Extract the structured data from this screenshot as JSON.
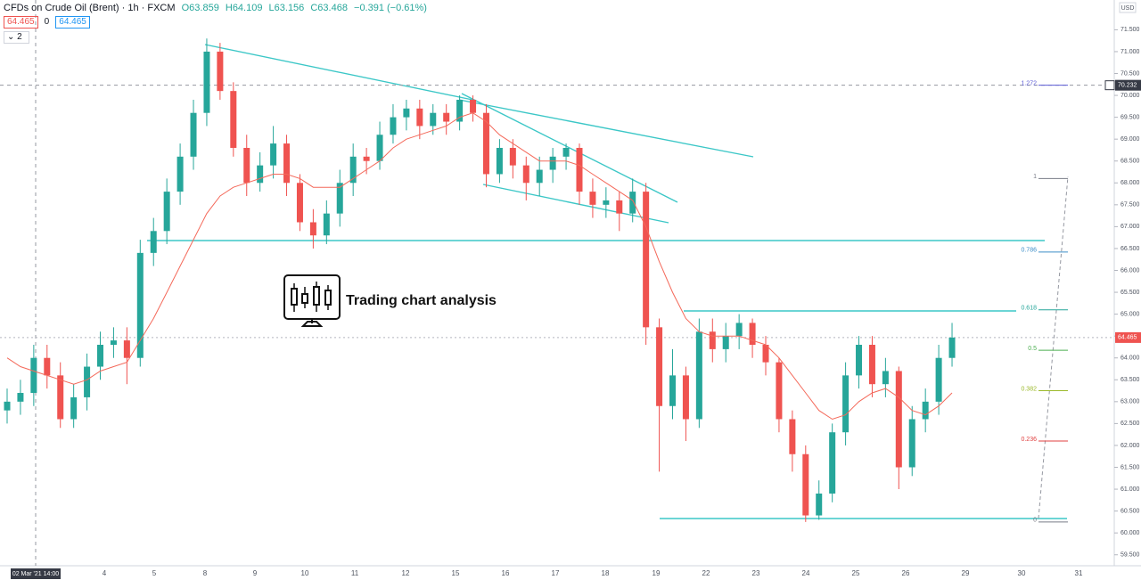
{
  "header": {
    "symbol": "CFDs on Crude Oil (Brent) · 1h · FXCM",
    "ohlc": [
      "O63.859",
      "H64.109",
      "L63.156",
      "C63.468"
    ],
    "change": "−0.391 (−0.61%)",
    "bid": "64.465",
    "spread": "0",
    "ask": "64.465",
    "indicator_count": "2",
    "currency": "USD",
    "watermark": "Trading chart analysis"
  },
  "chart_data": {
    "type": "candlestick",
    "open": [
      62.8,
      63.0,
      63.2,
      64.0,
      63.6,
      62.6,
      63.1,
      63.8,
      64.3,
      64.4,
      64.0,
      66.4,
      66.9,
      67.8,
      68.6,
      69.6,
      71.0,
      70.1,
      68.8,
      68.0,
      68.4,
      68.9,
      68.0,
      67.1,
      66.8,
      67.3,
      68.0,
      68.6,
      68.5,
      69.1,
      69.5,
      69.7,
      69.3,
      69.6,
      69.4,
      69.9,
      69.6,
      68.2,
      68.8,
      68.4,
      68.0,
      68.3,
      68.6,
      68.8,
      67.8,
      67.5,
      67.6,
      67.3,
      67.8,
      64.7,
      62.9,
      63.6,
      62.6,
      64.6,
      64.2,
      64.5,
      64.8,
      64.3,
      63.9,
      62.6,
      61.8,
      60.4,
      60.9,
      62.3,
      63.6,
      64.3,
      63.4,
      63.7,
      61.5,
      62.6,
      63.0,
      64.0
    ],
    "high": [
      63.3,
      63.5,
      64.3,
      64.3,
      63.9,
      63.4,
      64.1,
      64.6,
      64.7,
      64.7,
      66.7,
      67.2,
      68.1,
      68.9,
      69.9,
      71.3,
      71.2,
      70.3,
      69.1,
      68.7,
      69.3,
      69.1,
      68.2,
      67.4,
      67.6,
      68.3,
      68.9,
      68.8,
      69.4,
      69.8,
      69.9,
      69.9,
      69.8,
      69.8,
      70.0,
      70.0,
      69.8,
      69.0,
      69.0,
      68.6,
      68.6,
      68.8,
      68.9,
      68.9,
      68.1,
      67.9,
      67.8,
      68.1,
      68.0,
      64.9,
      64.2,
      63.8,
      64.9,
      64.9,
      64.8,
      65.0,
      64.9,
      64.5,
      64.0,
      62.8,
      62.0,
      61.2,
      62.5,
      63.9,
      64.5,
      64.5,
      64.0,
      63.8,
      62.9,
      63.3,
      64.3,
      64.8
    ],
    "low": [
      62.5,
      62.7,
      62.9,
      63.3,
      62.4,
      62.4,
      62.8,
      63.5,
      64.0,
      63.4,
      63.8,
      66.1,
      66.6,
      67.5,
      68.3,
      69.3,
      69.9,
      68.6,
      67.7,
      67.8,
      68.1,
      67.7,
      66.9,
      66.5,
      66.6,
      67.0,
      67.7,
      68.2,
      68.3,
      68.9,
      69.2,
      69.0,
      69.1,
      69.1,
      69.2,
      69.4,
      67.9,
      68.0,
      68.1,
      67.6,
      67.7,
      68.0,
      68.3,
      67.5,
      67.2,
      67.2,
      66.9,
      67.1,
      64.3,
      61.4,
      62.6,
      62.1,
      62.4,
      63.9,
      63.9,
      64.2,
      64.0,
      63.6,
      62.3,
      61.4,
      60.25,
      60.3,
      60.7,
      62.0,
      63.3,
      63.1,
      63.1,
      61.0,
      61.3,
      62.3,
      62.7,
      63.8
    ],
    "close": [
      63.0,
      63.2,
      64.0,
      63.6,
      62.6,
      63.1,
      63.8,
      64.3,
      64.4,
      64.0,
      66.4,
      66.9,
      67.8,
      68.6,
      69.6,
      71.0,
      70.1,
      68.8,
      68.0,
      68.4,
      68.9,
      68.0,
      67.1,
      66.8,
      67.3,
      68.0,
      68.6,
      68.5,
      69.1,
      69.5,
      69.7,
      69.3,
      69.6,
      69.4,
      69.9,
      69.6,
      68.2,
      68.8,
      68.4,
      68.0,
      68.3,
      68.6,
      68.8,
      67.8,
      67.5,
      67.6,
      67.3,
      67.8,
      64.7,
      62.9,
      63.6,
      62.6,
      64.6,
      64.2,
      64.5,
      64.8,
      64.3,
      63.9,
      62.6,
      61.8,
      60.4,
      60.9,
      62.3,
      63.6,
      64.3,
      63.4,
      63.7,
      61.5,
      62.6,
      63.0,
      64.0,
      64.465
    ],
    "ma": [
      64.0,
      63.8,
      63.7,
      63.6,
      63.5,
      63.4,
      63.5,
      63.7,
      63.8,
      63.9,
      64.4,
      64.9,
      65.5,
      66.1,
      66.7,
      67.3,
      67.7,
      67.9,
      68.0,
      68.1,
      68.2,
      68.2,
      68.1,
      67.9,
      67.9,
      67.9,
      68.1,
      68.3,
      68.5,
      68.8,
      69.0,
      69.1,
      69.2,
      69.3,
      69.5,
      69.6,
      69.4,
      69.1,
      68.9,
      68.7,
      68.5,
      68.5,
      68.5,
      68.4,
      68.2,
      68.0,
      67.8,
      67.6,
      67.0,
      66.2,
      65.5,
      64.9,
      64.6,
      64.5,
      64.5,
      64.5,
      64.4,
      64.3,
      64.0,
      63.6,
      63.2,
      62.8,
      62.6,
      62.7,
      63.0,
      63.2,
      63.3,
      63.1,
      62.8,
      62.7,
      62.9,
      63.2
    ],
    "up_color": "#26a69a",
    "down_color": "#ef5350",
    "ma_color": "#f4695a",
    "x_labels": [
      "02 Mar '21 14:00",
      "4",
      "5",
      "8",
      "9",
      "10",
      "11",
      "12",
      "15",
      "16",
      "17",
      "18",
      "19",
      "22",
      "23",
      "24",
      "25",
      "26",
      "29",
      "30",
      "31"
    ],
    "ylim": [
      59.25,
      72.18
    ],
    "yticks": [
      {
        "value": 59.5,
        "label": "59.500"
      },
      {
        "value": 60,
        "label": "60.000"
      },
      {
        "value": 60.5,
        "label": "60.500"
      },
      {
        "value": 61,
        "label": "61.000"
      },
      {
        "value": 61.5,
        "label": "61.500"
      },
      {
        "value": 62,
        "label": "62.000"
      },
      {
        "value": 62.5,
        "label": "62.500"
      },
      {
        "value": 63,
        "label": "63.000"
      },
      {
        "value": 63.5,
        "label": "63.500"
      },
      {
        "value": 64,
        "label": "64.000"
      },
      {
        "value": 64.5,
        "label": "64.500"
      },
      {
        "value": 65,
        "label": "65.000"
      },
      {
        "value": 65.5,
        "label": "65.500"
      },
      {
        "value": 66,
        "label": "66.000"
      },
      {
        "value": 66.5,
        "label": "66.500"
      },
      {
        "value": 67,
        "label": "67.000"
      },
      {
        "value": 67.5,
        "label": "67.500"
      },
      {
        "value": 68,
        "label": "68.000"
      },
      {
        "value": 68.5,
        "label": "68.500"
      },
      {
        "value": 69,
        "label": "69.000"
      },
      {
        "value": 69.5,
        "label": "69.500"
      },
      {
        "value": 70,
        "label": "70.000"
      },
      {
        "value": 70.5,
        "label": "70.500"
      },
      {
        "value": 71,
        "label": "71.000"
      },
      {
        "value": 71.5,
        "label": "71.500"
      }
    ],
    "crosshair_price": {
      "value": 70.232,
      "label": "70.232"
    },
    "last_price": {
      "value": 64.465,
      "label": "64.465"
    },
    "fib": [
      {
        "label": 1.272,
        "price": 70.232,
        "color": "#5b5bd6"
      },
      {
        "label": 1,
        "price": 68.1,
        "color": "#787b86"
      },
      {
        "label": 0.786,
        "price": 66.42,
        "color": "#3c8ec8"
      },
      {
        "label": 0.618,
        "price": 65.1,
        "color": "#26a69a"
      },
      {
        "label": 0.5,
        "price": 64.175,
        "color": "#4caf50"
      },
      {
        "label": 0.382,
        "price": 63.25,
        "color": "#9bb92a"
      },
      {
        "label": 0.236,
        "price": 62.1,
        "color": "#e04040"
      },
      {
        "label": 0,
        "price": 60.25,
        "color": "#787b86"
      }
    ]
  }
}
